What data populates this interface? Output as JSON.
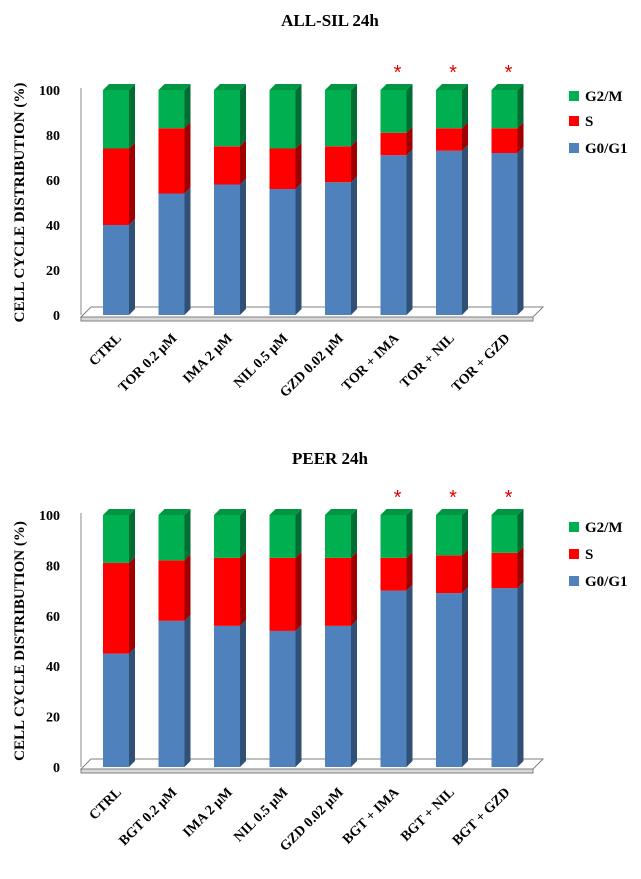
{
  "chart_data": [
    {
      "type": "bar",
      "stacked": true,
      "title": "ALL-SIL 24h",
      "ylabel": "CELL CYCLE DISTRIBUTION (%)",
      "ylim": [
        0,
        100
      ],
      "yticks": [
        "0",
        "20",
        "40",
        "60",
        "80",
        "100"
      ],
      "categories": [
        "CTRL",
        "TOR 0.2 µM",
        "IMA 2 µM",
        "NIL 0.5 µM",
        "GZD 0.02 µM",
        "TOR + IMA",
        "TOR + NIL",
        "TOR + GZD"
      ],
      "series": [
        {
          "name": "G0/G1",
          "color": "#4f81bd",
          "values": [
            40,
            54,
            58,
            56,
            59,
            71,
            73,
            72
          ]
        },
        {
          "name": "S",
          "color": "#ff0000",
          "values": [
            34,
            29,
            17,
            18,
            16,
            10,
            10,
            11
          ]
        },
        {
          "name": "G2/M",
          "color": "#00b050",
          "values": [
            26,
            17,
            25,
            26,
            25,
            19,
            17,
            17
          ]
        }
      ],
      "significance_marker": "*",
      "significant": [
        false,
        false,
        false,
        false,
        false,
        true,
        true,
        true
      ],
      "legend": [
        "G2/M",
        "S",
        "G0/G1"
      ],
      "legend_position": "right"
    },
    {
      "type": "bar",
      "stacked": true,
      "title": "PEER 24h",
      "ylabel": "CELL CYCLE DISTRIBUTION (%)",
      "ylim": [
        0,
        100
      ],
      "yticks": [
        "0",
        "20",
        "40",
        "60",
        "80",
        "100"
      ],
      "categories": [
        "CTRL",
        "BGT 0.2 µM",
        "IMA 2 µM",
        "NIL 0.5 µM",
        "GZD 0.02 µM",
        "BGT + IMA",
        "BGT + NIL",
        "BGT + GZD"
      ],
      "series": [
        {
          "name": "G0/G1",
          "color": "#4f81bd",
          "values": [
            45,
            58,
            56,
            54,
            56,
            70,
            69,
            71
          ]
        },
        {
          "name": "S",
          "color": "#ff0000",
          "values": [
            36,
            24,
            27,
            29,
            27,
            13,
            15,
            14
          ]
        },
        {
          "name": "G2/M",
          "color": "#00b050",
          "values": [
            19,
            18,
            17,
            17,
            17,
            17,
            16,
            15
          ]
        }
      ],
      "significance_marker": "*",
      "significant": [
        false,
        false,
        false,
        false,
        false,
        true,
        true,
        true
      ],
      "legend": [
        "G2/M",
        "S",
        "G0/G1"
      ],
      "legend_position": "right"
    }
  ]
}
